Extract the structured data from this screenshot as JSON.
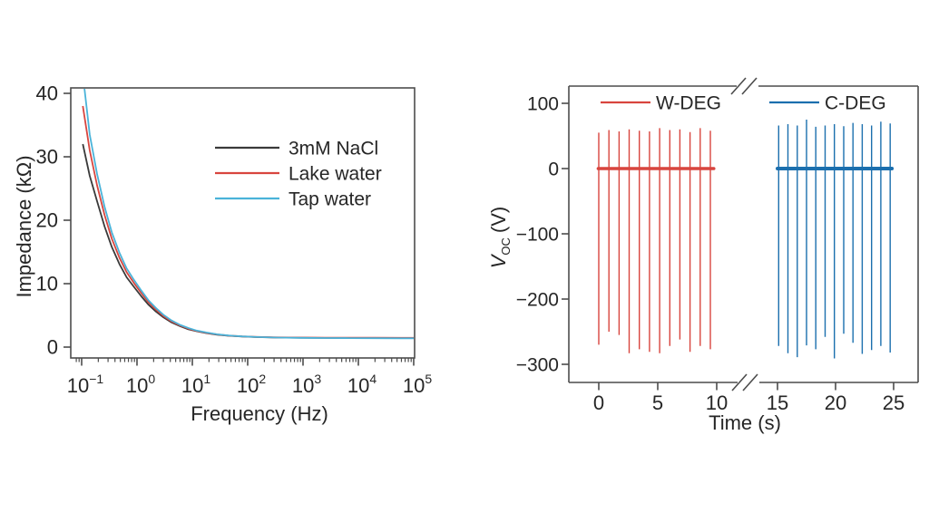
{
  "figure": {
    "background": "#ffffff",
    "axis_color": "#4c4c4c",
    "text_color": "#262626"
  },
  "chart_data": [
    {
      "id": "impedance-spectrum",
      "type": "line",
      "title": "",
      "xlabel": "Frequency (Hz)",
      "ylabel": "Impedance (kΩ)",
      "x_scale": "log",
      "xlim": [
        0.08,
        100000
      ],
      "ylim": [
        -1.7,
        40.9
      ],
      "grid": false,
      "y_ticks": [
        0,
        10,
        20,
        30,
        40
      ],
      "x_ticks": [
        {
          "value": 0.1,
          "base": "10",
          "exp": "−1"
        },
        {
          "value": 1,
          "base": "10",
          "exp": "0"
        },
        {
          "value": 10,
          "base": "10",
          "exp": "1"
        },
        {
          "value": 100,
          "base": "10",
          "exp": "2"
        },
        {
          "value": 1000,
          "base": "10",
          "exp": "3"
        },
        {
          "value": 10000,
          "base": "10",
          "exp": "4"
        },
        {
          "value": 100000,
          "base": "10",
          "exp": "5"
        }
      ],
      "legend_position": "upper-right-inside",
      "legend": [
        {
          "label": "3mM NaCl",
          "color": "#3a3a3a"
        },
        {
          "label": "Lake water",
          "color": "#d8453e"
        },
        {
          "label": "Tap water",
          "color": "#4ab3d9"
        }
      ],
      "series": [
        {
          "name": "3mM NaCl",
          "color": "#3a3a3a",
          "points": [
            [
              0.105,
              32
            ],
            [
              0.14,
              27
            ],
            [
              0.19,
              23
            ],
            [
              0.26,
              19
            ],
            [
              0.35,
              15.8
            ],
            [
              0.48,
              13.1
            ],
            [
              0.65,
              11.0
            ],
            [
              0.88,
              9.5
            ],
            [
              1.2,
              8.0
            ],
            [
              1.6,
              6.7
            ],
            [
              2.2,
              5.6
            ],
            [
              3,
              4.7
            ],
            [
              4.2,
              3.9
            ],
            [
              6,
              3.3
            ],
            [
              8.5,
              2.8
            ],
            [
              12,
              2.5
            ],
            [
              18,
              2.2
            ],
            [
              28,
              1.95
            ],
            [
              45,
              1.78
            ],
            [
              80,
              1.65
            ],
            [
              150,
              1.57
            ],
            [
              350,
              1.5
            ],
            [
              900,
              1.47
            ],
            [
              2500,
              1.45
            ],
            [
              7000,
              1.44
            ],
            [
              20000,
              1.44
            ],
            [
              60000,
              1.43
            ],
            [
              100000,
              1.43
            ]
          ]
        },
        {
          "name": "Lake water",
          "color": "#d8453e",
          "points": [
            [
              0.105,
              38
            ],
            [
              0.14,
              31
            ],
            [
              0.19,
              25.5
            ],
            [
              0.26,
              20.8
            ],
            [
              0.35,
              17.1
            ],
            [
              0.48,
              14.1
            ],
            [
              0.65,
              11.8
            ],
            [
              0.88,
              10.1
            ],
            [
              1.2,
              8.5
            ],
            [
              1.6,
              7.1
            ],
            [
              2.2,
              5.9
            ],
            [
              3,
              4.9
            ],
            [
              4.2,
              4.05
            ],
            [
              6,
              3.4
            ],
            [
              8.5,
              2.9
            ],
            [
              12,
              2.55
            ],
            [
              18,
              2.25
            ],
            [
              28,
              2.0
            ],
            [
              45,
              1.82
            ],
            [
              80,
              1.68
            ],
            [
              150,
              1.6
            ],
            [
              350,
              1.53
            ],
            [
              900,
              1.5
            ],
            [
              2500,
              1.48
            ],
            [
              7000,
              1.47
            ],
            [
              20000,
              1.47
            ],
            [
              60000,
              1.46
            ],
            [
              100000,
              1.46
            ]
          ]
        },
        {
          "name": "Tap water",
          "color": "#4ab3d9",
          "points": [
            [
              0.105,
              43
            ],
            [
              0.14,
              33.5
            ],
            [
              0.19,
              27.3
            ],
            [
              0.26,
              22.1
            ],
            [
              0.35,
              18.1
            ],
            [
              0.48,
              14.9
            ],
            [
              0.65,
              12.4
            ],
            [
              0.88,
              10.6
            ],
            [
              1.2,
              8.9
            ],
            [
              1.6,
              7.4
            ],
            [
              2.2,
              6.15
            ],
            [
              3,
              5.1
            ],
            [
              4.2,
              4.2
            ],
            [
              6,
              3.5
            ],
            [
              8.5,
              3.0
            ],
            [
              12,
              2.6
            ],
            [
              18,
              2.3
            ],
            [
              28,
              2.02
            ],
            [
              45,
              1.83
            ],
            [
              80,
              1.68
            ],
            [
              150,
              1.58
            ],
            [
              350,
              1.5
            ],
            [
              900,
              1.46
            ],
            [
              2500,
              1.43
            ],
            [
              7000,
              1.41
            ],
            [
              20000,
              1.4
            ],
            [
              60000,
              1.39
            ],
            [
              100000,
              1.39
            ]
          ]
        }
      ]
    },
    {
      "id": "voc-time",
      "type": "spike-line",
      "title": "",
      "xlabel": "Time (s)",
      "ylabel_parts": {
        "symbol": "V",
        "subscript": "OC",
        "unit": "(V)"
      },
      "ylim": [
        -328,
        126
      ],
      "grid": false,
      "y_ticks": [
        100,
        0,
        -100,
        -200,
        -300
      ],
      "x_ticks": [
        0,
        5,
        10,
        15,
        20,
        25
      ],
      "axis_break_between": [
        10,
        15
      ],
      "legend_position": "top-inside",
      "legend": [
        {
          "label": "W-DEG",
          "color": "#d8453e"
        },
        {
          "label": "C-DEG",
          "color": "#1b6fae"
        }
      ],
      "series": [
        {
          "name": "W-DEG",
          "color": "#d8453e",
          "baseline_value": 0,
          "baseline_t": [
            -0.05,
            9.75
          ],
          "spikes": [
            [
              0.0,
              55,
              -270
            ],
            [
              0.86,
              59,
              -250
            ],
            [
              1.72,
              57,
              -255
            ],
            [
              2.58,
              60,
              -283
            ],
            [
              3.44,
              58,
              -277
            ],
            [
              4.3,
              57,
              -281
            ],
            [
              5.16,
              62,
              -283
            ],
            [
              6.02,
              59,
              -272
            ],
            [
              6.88,
              60,
              -262
            ],
            [
              7.74,
              56,
              -281
            ],
            [
              8.6,
              62,
              -272
            ],
            [
              9.46,
              58,
              -277
            ]
          ]
        },
        {
          "name": "C-DEG",
          "color": "#1b6fae",
          "baseline_value": 0,
          "baseline_t": [
            15.0,
            24.85
          ],
          "spikes": [
            [
              15.1,
              66,
              -272
            ],
            [
              15.9,
              68,
              -283
            ],
            [
              16.7,
              66,
              -289
            ],
            [
              17.5,
              75,
              -271
            ],
            [
              18.3,
              64,
              -277
            ],
            [
              19.1,
              66,
              -258
            ],
            [
              19.9,
              68,
              -291
            ],
            [
              20.7,
              65,
              -253
            ],
            [
              21.5,
              70,
              -267
            ],
            [
              22.3,
              68,
              -284
            ],
            [
              23.1,
              66,
              -278
            ],
            [
              23.9,
              72,
              -272
            ],
            [
              24.7,
              69,
              -282
            ]
          ]
        }
      ]
    }
  ]
}
